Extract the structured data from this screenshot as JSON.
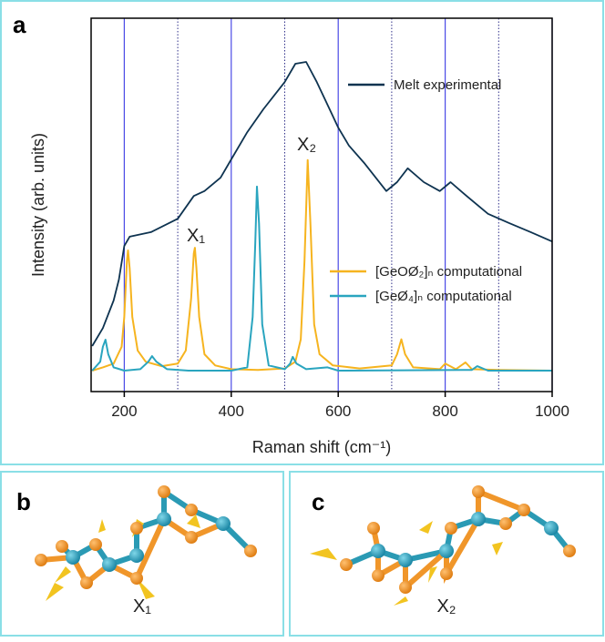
{
  "chart_data": {
    "type": "line",
    "panel_label": "a",
    "xlabel": "Raman shift (cm⁻¹)",
    "ylabel": "Intensity (arb. units)",
    "xlim": [
      138,
      1000
    ],
    "ylim": [
      0,
      100
    ],
    "xticks": [
      200,
      400,
      600,
      800,
      1000
    ],
    "xminor": [
      300,
      500,
      700,
      900
    ],
    "grid": true,
    "annotations": [
      "X₁",
      "X₂"
    ],
    "series": [
      {
        "name": "Melt experimental",
        "color": "#0e3350",
        "x": [
          140,
          160,
          180,
          190,
          200,
          210,
          250,
          300,
          330,
          350,
          380,
          400,
          430,
          460,
          500,
          520,
          540,
          560,
          580,
          600,
          620,
          650,
          690,
          710,
          730,
          760,
          790,
          810,
          840,
          880,
          920,
          960,
          1000
        ],
        "values": [
          12.2,
          17,
          24.4,
          30,
          39,
          41.5,
          42.7,
          46.3,
          52.4,
          53.7,
          57.3,
          62.2,
          69.5,
          75.6,
          82.9,
          87.8,
          88.3,
          82.9,
          76.8,
          70.7,
          65.9,
          61,
          53.7,
          56.1,
          59.8,
          56.1,
          53.7,
          56.1,
          52.4,
          47.6,
          45.1,
          42.7,
          40.2
        ]
      },
      {
        "name": "[GeOØ₂]ₙ computational",
        "color": "#f6b41f",
        "x": [
          140,
          160,
          180,
          195,
          200,
          205,
          207,
          210,
          215,
          225,
          240,
          270,
          300,
          315,
          325,
          330,
          332,
          335,
          340,
          350,
          370,
          400,
          450,
          500,
          520,
          530,
          537,
          543,
          548,
          555,
          565,
          590,
          640,
          700,
          710,
          718,
          725,
          740,
          790,
          800,
          820,
          838,
          850,
          900,
          1000
        ],
        "values": [
          5.6,
          6.5,
          7.5,
          12,
          20,
          35,
          37.8,
          33,
          20,
          11,
          8,
          6.8,
          7.5,
          11,
          25,
          37,
          38.5,
          33,
          20,
          10,
          7,
          6,
          5.8,
          6.2,
          8,
          14,
          35,
          62,
          45,
          18,
          10,
          7,
          6.2,
          7,
          10,
          14,
          10,
          6.5,
          6,
          7.5,
          6,
          7.8,
          6,
          5.8,
          5.6
        ]
      },
      {
        "name": "[GeØ₄]ₙ computational",
        "color": "#2aa5bf",
        "x": [
          140,
          155,
          160,
          165,
          170,
          180,
          200,
          230,
          245,
          252,
          260,
          280,
          320,
          400,
          430,
          440,
          445,
          448,
          452,
          458,
          470,
          500,
          510,
          515,
          522,
          540,
          580,
          600,
          850,
          860,
          880,
          1000
        ],
        "values": [
          5.6,
          8,
          12,
          13.9,
          10,
          6.5,
          5.6,
          6,
          8,
          9.5,
          8,
          6,
          5.6,
          5.6,
          6.5,
          20,
          40,
          54.9,
          45,
          18,
          7,
          6,
          7.5,
          9.3,
          7.5,
          6,
          6.5,
          5.6,
          5.8,
          6.8,
          5.6,
          5.6
        ]
      }
    ]
  },
  "structures": [
    {
      "panel_label": "b",
      "label": "X₁"
    },
    {
      "panel_label": "c",
      "label": "X₂"
    }
  ]
}
